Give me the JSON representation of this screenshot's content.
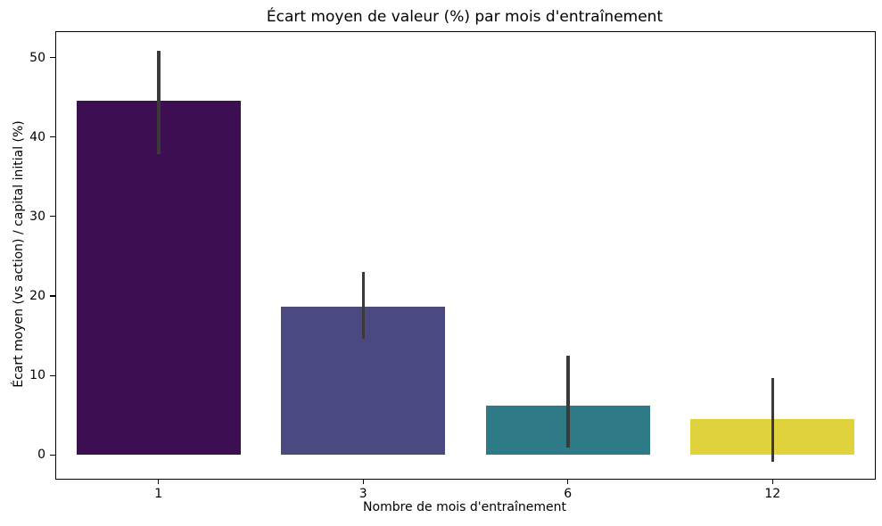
{
  "chart_data": {
    "type": "bar",
    "title": "Écart moyen de valeur (%) par mois d'entraînement",
    "xlabel": "Nombre de mois d'entraînement",
    "ylabel": "Écart moyen (vs action) / capital initial (%)",
    "categories": [
      "1",
      "3",
      "6",
      "12"
    ],
    "values": [
      44.6,
      18.7,
      6.2,
      4.5
    ],
    "error_low": [
      37.8,
      14.6,
      0.9,
      -0.9
    ],
    "error_high": [
      50.9,
      23.0,
      12.5,
      9.7
    ],
    "bar_colors": [
      "#3d0e52",
      "#4a4a80",
      "#2e7a87",
      "#e0d23c"
    ],
    "error_bar_color": "#3a3a3a",
    "yticks": [
      0,
      10,
      20,
      30,
      40,
      50
    ],
    "ylim": [
      -3.0,
      53.2
    ],
    "bar_width_fraction": 0.8,
    "grid": false,
    "legend": null
  }
}
